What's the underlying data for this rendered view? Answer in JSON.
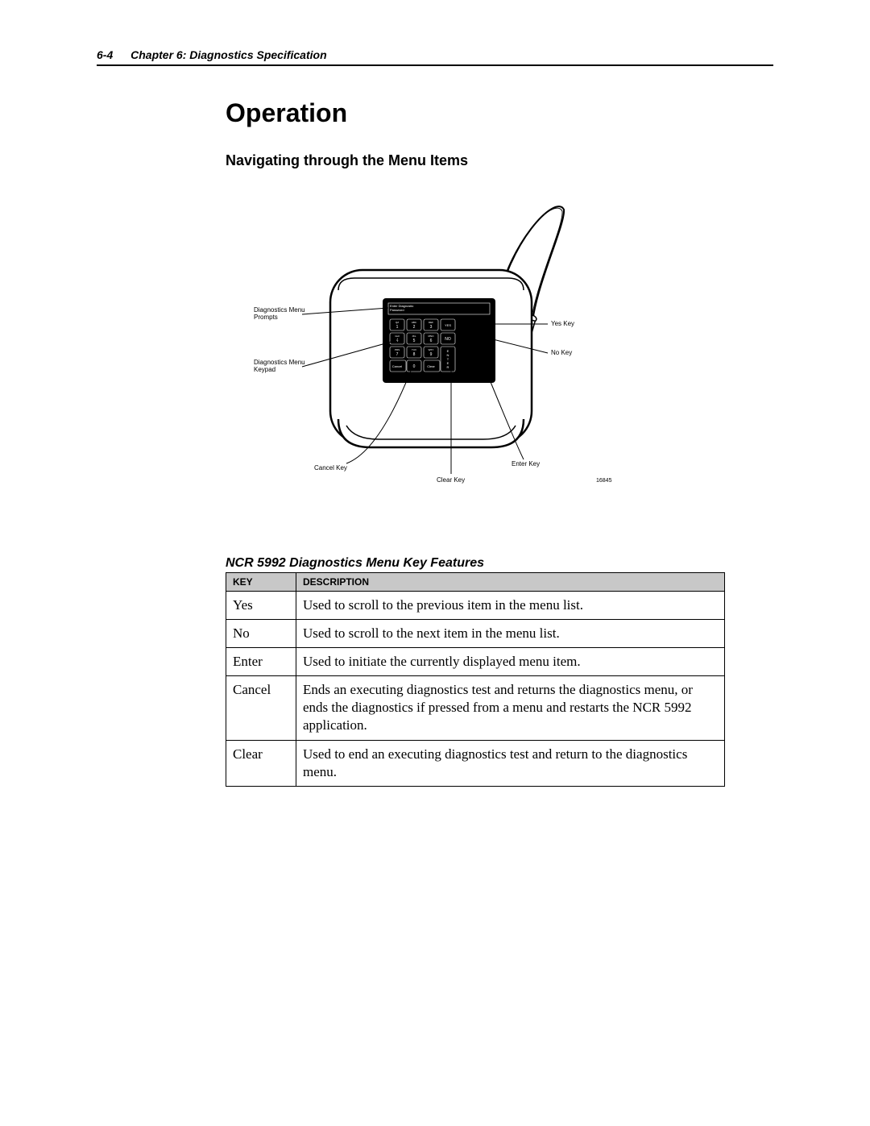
{
  "header": {
    "page_number": "6-4",
    "chapter": "Chapter 6: Diagnostics Specification"
  },
  "title": "Operation",
  "subtitle": "Navigating through the Menu Items",
  "diagram": {
    "labels": {
      "prompts": "Diagnostics Menu\nPrompts",
      "keypad": "Diagnostics  Menu\nKeypad",
      "yes_key": "Yes Key",
      "no_key": "No Key",
      "enter_key": "Enter Key",
      "cancel_key": "Cancel Key",
      "clear_key": "Clear Key"
    },
    "screen_text": "Enter  Diagnostic\nPassword",
    "figure_id": "16845",
    "keypad": {
      "r1": [
        [
          "QZ",
          "1"
        ],
        [
          "ABC",
          "2"
        ],
        [
          "DEF",
          "3"
        ],
        [
          "",
          "YES"
        ]
      ],
      "r2": [
        [
          "GHI",
          "4"
        ],
        [
          "JKL",
          "5"
        ],
        [
          "MNO",
          "6"
        ],
        [
          "",
          "NO"
        ]
      ],
      "r3": [
        [
          "PRS",
          "7"
        ],
        [
          "TUV",
          "8"
        ],
        [
          "WXY",
          "9"
        ],
        [
          "",
          "ENTER"
        ]
      ],
      "r4": [
        [
          "",
          "Cancel"
        ],
        [
          "",
          "0"
        ],
        [
          "",
          "Clear"
        ],
        [
          "",
          ""
        ]
      ]
    }
  },
  "table": {
    "title": "NCR 5992 Diagnostics Menu Key Features",
    "columns": [
      "Key",
      "Description"
    ],
    "rows": [
      [
        "Yes",
        "Used to scroll to the previous item in the menu list."
      ],
      [
        "No",
        "Used to scroll to the next item in the menu list."
      ],
      [
        "Enter",
        "Used to initiate the currently displayed menu item."
      ],
      [
        "Cancel",
        "Ends an executing diagnostics test and returns the diagnostics menu, or ends the diagnostics if pressed from a menu and restarts the NCR 5992 application."
      ],
      [
        "Clear",
        "Used to end an executing diagnostics test and return to the diagnostics menu."
      ]
    ]
  }
}
